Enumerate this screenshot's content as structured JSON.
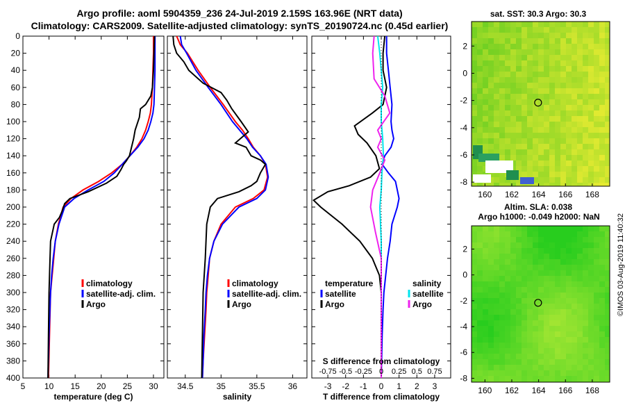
{
  "title_line1": "Argo profile: aoml 5904359_236 24-Jul-2019 2.159S 163.96E (NRT data)",
  "title_line2": "Climatology: CARS2009. Satellite-adjusted climatology: synTS_20190724.nc (0.45d earlier)",
  "depth_ticks": [
    "0",
    "20",
    "40",
    "60",
    "80",
    "100",
    "120",
    "140",
    "160",
    "180",
    "200",
    "220",
    "240",
    "260",
    "280",
    "300",
    "320",
    "340",
    "360",
    "380",
    "400"
  ],
  "colors": {
    "climatology": "#ff0000",
    "satellite": "#0000ff",
    "argo": "#000000",
    "salinity_sat": "#00e5ee",
    "salinity_argo": "#ee22ee"
  },
  "chart_data": [
    {
      "type": "line",
      "xlabel": "temperature (deg C)",
      "ylabel": "depth",
      "xlim": [
        5,
        32
      ],
      "ylim": [
        400,
        0
      ],
      "xticks": [
        "5",
        "10",
        "15",
        "20",
        "25",
        "30"
      ],
      "legend": {
        "climatology": "climatology",
        "satellite": "satellite-adj. clim.",
        "argo": "Argo"
      },
      "series": [
        {
          "name": "climatology",
          "x": [
            30,
            30,
            29.9,
            29.8,
            29.6,
            29.4,
            29.0,
            28.5,
            27.8,
            26.8,
            25.5,
            24.0,
            22.0,
            19.5,
            16.5,
            14.2,
            12.7,
            11.8,
            11.2,
            10.9,
            10.6,
            10.3,
            10.1,
            9.9
          ],
          "y": [
            0,
            20,
            40,
            60,
            80,
            90,
            100,
            110,
            120,
            130,
            140,
            150,
            160,
            170,
            180,
            190,
            200,
            220,
            240,
            260,
            280,
            300,
            350,
            400
          ]
        },
        {
          "name": "satellite",
          "x": [
            30.3,
            30.3,
            30.3,
            30.2,
            30.1,
            29.9,
            29.5,
            29.0,
            28.2,
            27.0,
            25.5,
            24.0,
            22.5,
            20.5,
            17.5,
            14.8,
            13.0,
            11.9,
            11.2,
            10.8,
            10.5,
            10.3,
            10.0,
            9.8
          ],
          "y": [
            0,
            20,
            40,
            60,
            80,
            90,
            100,
            110,
            120,
            130,
            140,
            150,
            160,
            170,
            180,
            190,
            200,
            220,
            240,
            260,
            280,
            300,
            350,
            400
          ]
        },
        {
          "name": "argo",
          "x": [
            30.2,
            30.1,
            30.0,
            29.8,
            29.5,
            28.5,
            27.5,
            27.3,
            26.5,
            26.2,
            25.8,
            25.4,
            24.8,
            24.3,
            23.8,
            23.0,
            21.0,
            17.5,
            14.0,
            13.0,
            12.5,
            12.0,
            11.0,
            10.3,
            10.1,
            10.0,
            9.9,
            9.8
          ],
          "y": [
            0,
            20,
            40,
            60,
            70,
            80,
            85,
            95,
            110,
            120,
            130,
            140,
            146,
            150,
            156,
            164,
            172,
            182,
            190,
            196,
            205,
            212,
            220,
            240,
            280,
            300,
            350,
            400
          ]
        }
      ]
    },
    {
      "type": "line",
      "xlabel": "salinity",
      "ylabel": "depth",
      "xlim": [
        34.25,
        36.2
      ],
      "ylim": [
        400,
        0
      ],
      "xticks": [
        "34.5",
        "35",
        "35.5",
        "36"
      ],
      "legend": {
        "climatology": "climatology",
        "satellite": "satellite-adj. clim.",
        "argo": "Argo"
      },
      "series": [
        {
          "name": "climatology",
          "x": [
            34.38,
            34.43,
            34.53,
            34.68,
            34.85,
            35.03,
            35.2,
            35.3,
            35.38,
            35.45,
            35.55,
            35.62,
            35.65,
            35.6,
            35.45,
            35.2,
            35.0,
            34.9,
            34.84,
            34.82,
            34.8,
            34.79,
            34.77,
            34.75,
            34.74
          ],
          "y": [
            0,
            10,
            20,
            40,
            60,
            80,
            100,
            110,
            120,
            130,
            140,
            150,
            165,
            180,
            190,
            200,
            220,
            240,
            260,
            280,
            300,
            320,
            350,
            380,
            400
          ]
        },
        {
          "name": "satellite",
          "x": [
            34.43,
            34.45,
            34.52,
            34.65,
            34.82,
            35.0,
            35.16,
            35.26,
            35.36,
            35.44,
            35.55,
            35.63,
            35.66,
            35.62,
            35.5,
            35.25,
            35.02,
            34.9,
            34.84,
            34.81,
            34.79,
            34.78,
            34.76,
            34.75,
            34.74
          ],
          "y": [
            0,
            10,
            20,
            40,
            60,
            80,
            100,
            110,
            120,
            130,
            140,
            150,
            165,
            180,
            190,
            200,
            220,
            240,
            260,
            280,
            300,
            320,
            350,
            380,
            400
          ]
        },
        {
          "name": "argo",
          "x": [
            34.33,
            34.34,
            34.38,
            34.48,
            34.55,
            34.75,
            35.0,
            35.08,
            35.15,
            35.28,
            35.38,
            35.2,
            35.35,
            35.42,
            35.55,
            35.62,
            35.55,
            35.5,
            35.42,
            35.25,
            34.95,
            34.85,
            34.8,
            34.78,
            34.75,
            34.74,
            34.73
          ],
          "y": [
            0,
            10,
            20,
            30,
            40,
            55,
            66,
            75,
            85,
            100,
            112,
            125,
            130,
            140,
            145,
            150,
            160,
            170,
            175,
            182,
            190,
            200,
            220,
            260,
            300,
            350,
            400
          ]
        }
      ]
    },
    {
      "type": "line",
      "xlabel": "T difference from climatology",
      "ylabel": "depth",
      "xlim": [
        -3.9,
        3.9
      ],
      "ylim": [
        400,
        0
      ],
      "xticks": [
        "-3",
        "-2",
        "-1",
        "0",
        "1",
        "2",
        "3"
      ],
      "top_xlabel": "S difference from climatology",
      "top_xticks": [
        "-0.75",
        "-0.5",
        "-0.25",
        "0",
        "0.25",
        "0.5",
        "0.75"
      ],
      "legend": {
        "temperature": "temperature",
        "salinity": "salinity",
        "satellite": "satellite",
        "argo": "Argo"
      },
      "series": [
        {
          "name": "temperature satellite",
          "x": [
            0.3,
            0.3,
            0.4,
            0.5,
            0.6,
            0.55,
            0.6,
            0.7,
            0.55,
            0.2,
            0.05,
            0.4,
            0.8,
            0.9,
            1.0,
            0.9,
            0.6,
            0.5,
            0.35,
            0.25,
            0.15,
            0.1,
            0.05,
            0.0
          ],
          "y": [
            0,
            20,
            40,
            60,
            80,
            100,
            110,
            120,
            130,
            140,
            150,
            160,
            170,
            180,
            190,
            200,
            220,
            240,
            260,
            280,
            300,
            320,
            350,
            400
          ]
        },
        {
          "name": "temperature argo",
          "x": [
            0.2,
            0.1,
            0.1,
            0.3,
            0.1,
            -0.5,
            -1.5,
            -1.3,
            -0.8,
            -0.3,
            -0.1,
            -0.6,
            -1.8,
            -3.0,
            -3.8,
            -3.4,
            -2.2,
            -1.2,
            -0.5,
            -0.1,
            0.0,
            0.0,
            0.0
          ],
          "y": [
            0,
            20,
            40,
            60,
            80,
            90,
            105,
            115,
            125,
            140,
            155,
            165,
            175,
            182,
            192,
            200,
            220,
            240,
            260,
            280,
            300,
            350,
            400
          ]
        },
        {
          "name": "salinity satellite",
          "x": [
            -0.05,
            -0.02,
            0.0,
            0.02,
            0.0,
            0.0,
            0.02,
            0.03,
            0.01,
            0.0,
            -0.02,
            0.0,
            0.0,
            0.0,
            0.0
          ],
          "y": [
            0,
            20,
            40,
            60,
            80,
            100,
            120,
            140,
            160,
            180,
            200,
            240,
            280,
            340,
            400
          ]
        },
        {
          "name": "salinity argo",
          "x": [
            -0.1,
            -0.12,
            -0.1,
            0.05,
            0.12,
            -0.05,
            0.0,
            -0.05,
            0.05,
            -0.02,
            -0.12,
            -0.15,
            -0.08,
            0.0,
            0.0,
            0.0
          ],
          "y": [
            0,
            20,
            50,
            70,
            90,
            110,
            120,
            130,
            145,
            160,
            180,
            200,
            230,
            260,
            300,
            400
          ]
        }
      ]
    },
    {
      "type": "heatmap",
      "title": "sat. SST: 30.3  Argo: 30.3",
      "xticks": [
        "160",
        "162",
        "164",
        "166",
        "168"
      ],
      "yticks": [
        "2",
        "0",
        "-2",
        "-4",
        "-6",
        "-8"
      ],
      "xlim": [
        159,
        169.3
      ],
      "ylim": [
        -8.3,
        3.8
      ],
      "argo_position": [
        163.96,
        -2.159
      ]
    },
    {
      "type": "heatmap",
      "title_line1": "Altim. SLA: 0.038",
      "title_line2": "Argo h1000: -0.049 h2000: NaN",
      "xticks": [
        "160",
        "162",
        "164",
        "166",
        "168"
      ],
      "yticks": [
        "2",
        "0",
        "-2",
        "-4",
        "-6",
        "-8"
      ],
      "xlim": [
        159,
        169.3
      ],
      "ylim": [
        -8.3,
        3.8
      ],
      "argo_position": [
        163.96,
        -2.159
      ]
    }
  ],
  "footer": "©IMOS 03-Aug-2019 11:40:32"
}
